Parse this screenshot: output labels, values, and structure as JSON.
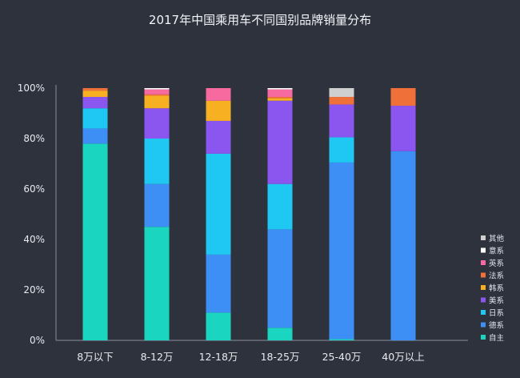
{
  "chart_data": {
    "type": "bar",
    "stacked": true,
    "title": "2017年中国乘用车不同国别品牌销量分布",
    "xlabel": "",
    "ylabel": "",
    "ylim": [
      0,
      100
    ],
    "yticks": [
      "0%",
      "20%",
      "40%",
      "60%",
      "80%",
      "100%"
    ],
    "grid": false,
    "legend_position": "right",
    "categories": [
      "8万以下",
      "8-12万",
      "12-18万",
      "18-25万",
      "25-40万",
      "40万以上"
    ],
    "series": [
      {
        "name": "自主",
        "color": "#1ad5bf",
        "values": [
          78,
          45,
          11,
          5,
          0.5,
          0
        ]
      },
      {
        "name": "德系",
        "color": "#3d8ff5",
        "values": [
          6,
          17,
          23,
          39,
          70,
          75
        ]
      },
      {
        "name": "日系",
        "color": "#1ec8f2",
        "values": [
          8,
          18,
          40,
          18,
          10,
          0
        ]
      },
      {
        "name": "美系",
        "color": "#8b55f0",
        "values": [
          4.5,
          12,
          13,
          33,
          13,
          18
        ]
      },
      {
        "name": "韩系",
        "color": "#f8b023",
        "values": [
          2.5,
          5,
          8,
          1,
          0,
          0
        ]
      },
      {
        "name": "法系",
        "color": "#f0703a",
        "values": [
          1,
          0.5,
          0,
          0.5,
          3,
          7
        ]
      },
      {
        "name": "英系",
        "color": "#f76aa0",
        "values": [
          0,
          2,
          5,
          3,
          0,
          0
        ]
      },
      {
        "name": "意系",
        "color": "#ffffff",
        "values": [
          0,
          0.5,
          0,
          0.5,
          0,
          0
        ]
      },
      {
        "name": "其他",
        "color": "#cfcfcf",
        "values": [
          0,
          0,
          0,
          0,
          3.5,
          0
        ]
      }
    ],
    "legend_order": [
      "其他",
      "意系",
      "英系",
      "法系",
      "韩系",
      "美系",
      "日系",
      "德系",
      "自主"
    ]
  }
}
